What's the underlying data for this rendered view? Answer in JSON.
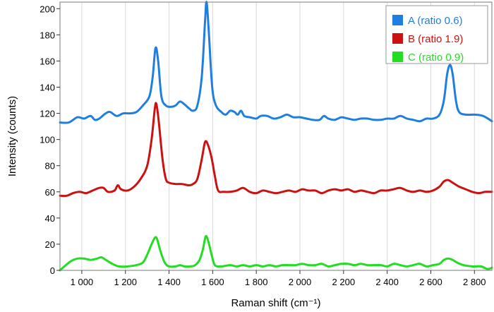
{
  "chart_data": {
    "type": "line",
    "xlabel": "Raman shift (cm⁻¹)",
    "ylabel": "Intensity (counts)",
    "xlim": [
      900,
      2880
    ],
    "ylim": [
      0,
      205
    ],
    "x_ticks": [
      1000,
      1200,
      1400,
      1600,
      1800,
      2000,
      2200,
      2400,
      2600,
      2800
    ],
    "x_tick_labels": [
      "1 000",
      "1 200",
      "1 400",
      "1 600",
      "1 800",
      "2 000",
      "2 200",
      "2 400",
      "2 600",
      "2 800"
    ],
    "y_ticks": [
      0,
      20,
      40,
      60,
      80,
      100,
      120,
      140,
      160,
      180,
      200
    ],
    "y_tick_labels": [
      "0",
      "20",
      "40",
      "60",
      "80",
      "100",
      "120",
      "140",
      "160",
      "180",
      "200"
    ],
    "grid": "vertical",
    "legend_position": "top-right",
    "series": [
      {
        "name": "A (ratio 0.6)",
        "color": "#1f7fe0",
        "points": [
          [
            900,
            113
          ],
          [
            940,
            113
          ],
          [
            980,
            117
          ],
          [
            1010,
            116
          ],
          [
            1040,
            118
          ],
          [
            1060,
            115
          ],
          [
            1080,
            116
          ],
          [
            1110,
            120
          ],
          [
            1130,
            121
          ],
          [
            1160,
            118
          ],
          [
            1190,
            120
          ],
          [
            1220,
            120
          ],
          [
            1250,
            121
          ],
          [
            1280,
            126
          ],
          [
            1310,
            133
          ],
          [
            1325,
            148
          ],
          [
            1338,
            170
          ],
          [
            1350,
            160
          ],
          [
            1365,
            133
          ],
          [
            1385,
            126
          ],
          [
            1410,
            125
          ],
          [
            1430,
            126
          ],
          [
            1450,
            129
          ],
          [
            1470,
            127
          ],
          [
            1490,
            124
          ],
          [
            1510,
            122
          ],
          [
            1530,
            126
          ],
          [
            1550,
            148
          ],
          [
            1565,
            190
          ],
          [
            1572,
            205
          ],
          [
            1582,
            183
          ],
          [
            1598,
            140
          ],
          [
            1615,
            126
          ],
          [
            1640,
            121
          ],
          [
            1660,
            119
          ],
          [
            1680,
            122
          ],
          [
            1700,
            121
          ],
          [
            1715,
            119
          ],
          [
            1730,
            122
          ],
          [
            1745,
            118
          ],
          [
            1770,
            117
          ],
          [
            1800,
            116
          ],
          [
            1820,
            118
          ],
          [
            1850,
            118
          ],
          [
            1880,
            116
          ],
          [
            1910,
            117
          ],
          [
            1940,
            119
          ],
          [
            1970,
            117
          ],
          [
            2000,
            117
          ],
          [
            2030,
            116
          ],
          [
            2060,
            115
          ],
          [
            2090,
            115
          ],
          [
            2110,
            118
          ],
          [
            2130,
            116
          ],
          [
            2160,
            115
          ],
          [
            2190,
            117
          ],
          [
            2220,
            116
          ],
          [
            2250,
            115
          ],
          [
            2280,
            116
          ],
          [
            2310,
            116
          ],
          [
            2340,
            115
          ],
          [
            2370,
            115
          ],
          [
            2400,
            116
          ],
          [
            2430,
            116
          ],
          [
            2460,
            118
          ],
          [
            2490,
            116
          ],
          [
            2520,
            115
          ],
          [
            2550,
            114
          ],
          [
            2580,
            116
          ],
          [
            2610,
            116
          ],
          [
            2640,
            119
          ],
          [
            2660,
            130
          ],
          [
            2675,
            150
          ],
          [
            2688,
            157
          ],
          [
            2700,
            150
          ],
          [
            2715,
            130
          ],
          [
            2730,
            121
          ],
          [
            2760,
            119
          ],
          [
            2800,
            119
          ],
          [
            2840,
            118
          ],
          [
            2880,
            114
          ]
        ]
      },
      {
        "name": "B (ratio 1.9)",
        "color": "#cc1111",
        "points": [
          [
            900,
            57
          ],
          [
            930,
            57
          ],
          [
            960,
            59
          ],
          [
            990,
            60
          ],
          [
            1020,
            59
          ],
          [
            1050,
            61
          ],
          [
            1080,
            63
          ],
          [
            1100,
            63
          ],
          [
            1120,
            60
          ],
          [
            1150,
            61
          ],
          [
            1165,
            65
          ],
          [
            1180,
            62
          ],
          [
            1210,
            61
          ],
          [
            1240,
            64
          ],
          [
            1270,
            70
          ],
          [
            1300,
            80
          ],
          [
            1320,
            100
          ],
          [
            1335,
            124
          ],
          [
            1342,
            127
          ],
          [
            1352,
            115
          ],
          [
            1370,
            85
          ],
          [
            1385,
            70
          ],
          [
            1400,
            67
          ],
          [
            1430,
            66
          ],
          [
            1460,
            66
          ],
          [
            1490,
            65
          ],
          [
            1510,
            66
          ],
          [
            1530,
            70
          ],
          [
            1550,
            85
          ],
          [
            1565,
            98
          ],
          [
            1578,
            96
          ],
          [
            1595,
            86
          ],
          [
            1610,
            72
          ],
          [
            1625,
            61
          ],
          [
            1650,
            60
          ],
          [
            1680,
            60
          ],
          [
            1710,
            61
          ],
          [
            1740,
            63
          ],
          [
            1770,
            60
          ],
          [
            1800,
            59
          ],
          [
            1830,
            61
          ],
          [
            1860,
            60
          ],
          [
            1890,
            59
          ],
          [
            1920,
            60
          ],
          [
            1950,
            61
          ],
          [
            1980,
            60
          ],
          [
            2010,
            62
          ],
          [
            2040,
            61
          ],
          [
            2070,
            61
          ],
          [
            2100,
            59
          ],
          [
            2130,
            61
          ],
          [
            2160,
            62
          ],
          [
            2190,
            61
          ],
          [
            2220,
            62
          ],
          [
            2250,
            60
          ],
          [
            2280,
            61
          ],
          [
            2310,
            60
          ],
          [
            2340,
            59
          ],
          [
            2370,
            61
          ],
          [
            2400,
            61
          ],
          [
            2430,
            62
          ],
          [
            2460,
            63
          ],
          [
            2490,
            61
          ],
          [
            2520,
            60
          ],
          [
            2550,
            61
          ],
          [
            2580,
            60
          ],
          [
            2610,
            61
          ],
          [
            2640,
            64
          ],
          [
            2660,
            68
          ],
          [
            2680,
            69
          ],
          [
            2700,
            67
          ],
          [
            2730,
            64
          ],
          [
            2760,
            62
          ],
          [
            2790,
            60
          ],
          [
            2820,
            59
          ],
          [
            2850,
            60
          ],
          [
            2880,
            60
          ]
        ]
      },
      {
        "name": "C (ratio 0.9)",
        "color": "#22dd22",
        "points": [
          [
            900,
            0
          ],
          [
            920,
            3
          ],
          [
            950,
            7
          ],
          [
            980,
            9
          ],
          [
            1010,
            9
          ],
          [
            1040,
            8
          ],
          [
            1070,
            9
          ],
          [
            1090,
            10
          ],
          [
            1110,
            8
          ],
          [
            1140,
            5
          ],
          [
            1170,
            3
          ],
          [
            1210,
            3
          ],
          [
            1250,
            4
          ],
          [
            1280,
            6
          ],
          [
            1300,
            12
          ],
          [
            1320,
            20
          ],
          [
            1335,
            25
          ],
          [
            1345,
            24
          ],
          [
            1360,
            15
          ],
          [
            1380,
            6
          ],
          [
            1400,
            3
          ],
          [
            1430,
            3
          ],
          [
            1450,
            4
          ],
          [
            1470,
            3
          ],
          [
            1500,
            3
          ],
          [
            1520,
            4
          ],
          [
            1540,
            8
          ],
          [
            1555,
            16
          ],
          [
            1568,
            26
          ],
          [
            1580,
            22
          ],
          [
            1595,
            12
          ],
          [
            1610,
            4
          ],
          [
            1640,
            3
          ],
          [
            1680,
            4
          ],
          [
            1710,
            3
          ],
          [
            1740,
            4
          ],
          [
            1770,
            3
          ],
          [
            1800,
            4
          ],
          [
            1830,
            3
          ],
          [
            1860,
            4
          ],
          [
            1890,
            3
          ],
          [
            1920,
            4
          ],
          [
            1950,
            4
          ],
          [
            1980,
            4
          ],
          [
            2010,
            5
          ],
          [
            2040,
            4
          ],
          [
            2070,
            4
          ],
          [
            2100,
            5
          ],
          [
            2130,
            3
          ],
          [
            2160,
            4
          ],
          [
            2190,
            5
          ],
          [
            2220,
            5
          ],
          [
            2250,
            4
          ],
          [
            2280,
            5
          ],
          [
            2310,
            4
          ],
          [
            2340,
            4
          ],
          [
            2370,
            4
          ],
          [
            2400,
            3
          ],
          [
            2430,
            5
          ],
          [
            2460,
            4
          ],
          [
            2490,
            3
          ],
          [
            2520,
            4
          ],
          [
            2550,
            5
          ],
          [
            2580,
            3
          ],
          [
            2610,
            4
          ],
          [
            2640,
            5
          ],
          [
            2660,
            8
          ],
          [
            2680,
            9
          ],
          [
            2700,
            8
          ],
          [
            2720,
            6
          ],
          [
            2750,
            4
          ],
          [
            2790,
            3
          ],
          [
            2830,
            3
          ],
          [
            2860,
            1
          ],
          [
            2880,
            2
          ]
        ]
      }
    ]
  }
}
